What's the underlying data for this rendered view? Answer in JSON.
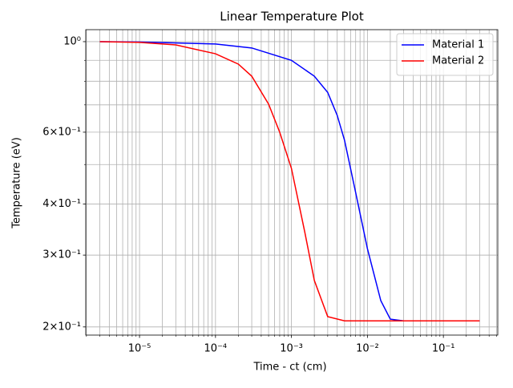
{
  "chart_data": {
    "type": "line",
    "title": "Linear Temperature Plot",
    "xlabel": "Time - ct (cm)",
    "ylabel": "Temperature (eV)",
    "xscale": "log",
    "yscale": "log",
    "grid": true,
    "legend": "upper right",
    "xlim": [
      1.96e-06,
      0.52
    ],
    "ylim": [
      0.191,
      1.07
    ],
    "xticks": [
      {
        "value": 1e-05,
        "label": "10⁻⁵"
      },
      {
        "value": 0.0001,
        "label": "10⁻⁴"
      },
      {
        "value": 0.001,
        "label": "10⁻³"
      },
      {
        "value": 0.01,
        "label": "10⁻²"
      },
      {
        "value": 0.1,
        "label": "10⁻¹"
      }
    ],
    "xminorticks": [
      2e-06,
      3e-06,
      4e-06,
      5e-06,
      6e-06,
      7e-06,
      8e-06,
      9e-06,
      2e-05,
      3e-05,
      4e-05,
      5e-05,
      6e-05,
      7e-05,
      8e-05,
      9e-05,
      0.0002,
      0.0003,
      0.0004,
      0.0005,
      0.0006,
      0.0007,
      0.0008,
      0.0009,
      0.002,
      0.003,
      0.004,
      0.005,
      0.006,
      0.007,
      0.008,
      0.009,
      0.02,
      0.03,
      0.04,
      0.05,
      0.06,
      0.07,
      0.08,
      0.09,
      0.2,
      0.3,
      0.4,
      0.5
    ],
    "yticks": [
      {
        "value": 0.2,
        "label": "2×10⁻¹"
      },
      {
        "value": 0.3,
        "label": "3×10⁻¹"
      },
      {
        "value": 0.4,
        "label": "4×10⁻¹"
      },
      {
        "value": 0.6,
        "label": "6×10⁻¹"
      },
      {
        "value": 1,
        "label": "10⁰"
      }
    ],
    "yminorticks": [
      0.5,
      0.7,
      0.8,
      0.9
    ],
    "series": [
      {
        "name": "Material 1",
        "color": "#0000ff",
        "x": [
          3e-06,
          1e-05,
          0.0001,
          0.0003,
          0.001,
          0.002,
          0.003,
          0.004,
          0.005,
          0.007,
          0.01,
          0.015,
          0.02,
          0.03,
          0.3
        ],
        "values": [
          1.0,
          0.998,
          0.987,
          0.965,
          0.9,
          0.823,
          0.751,
          0.66,
          0.573,
          0.427,
          0.311,
          0.232,
          0.209,
          0.207,
          0.207
        ]
      },
      {
        "name": "Material 2",
        "color": "#ff0000",
        "x": [
          3e-06,
          1e-05,
          3e-05,
          0.0001,
          0.0002,
          0.0003,
          0.0005,
          0.0007,
          0.001,
          0.0015,
          0.002,
          0.003,
          0.005,
          0.3
        ],
        "values": [
          1.0,
          0.996,
          0.982,
          0.934,
          0.881,
          0.823,
          0.703,
          0.6,
          0.489,
          0.341,
          0.26,
          0.212,
          0.207,
          0.207
        ]
      }
    ]
  }
}
